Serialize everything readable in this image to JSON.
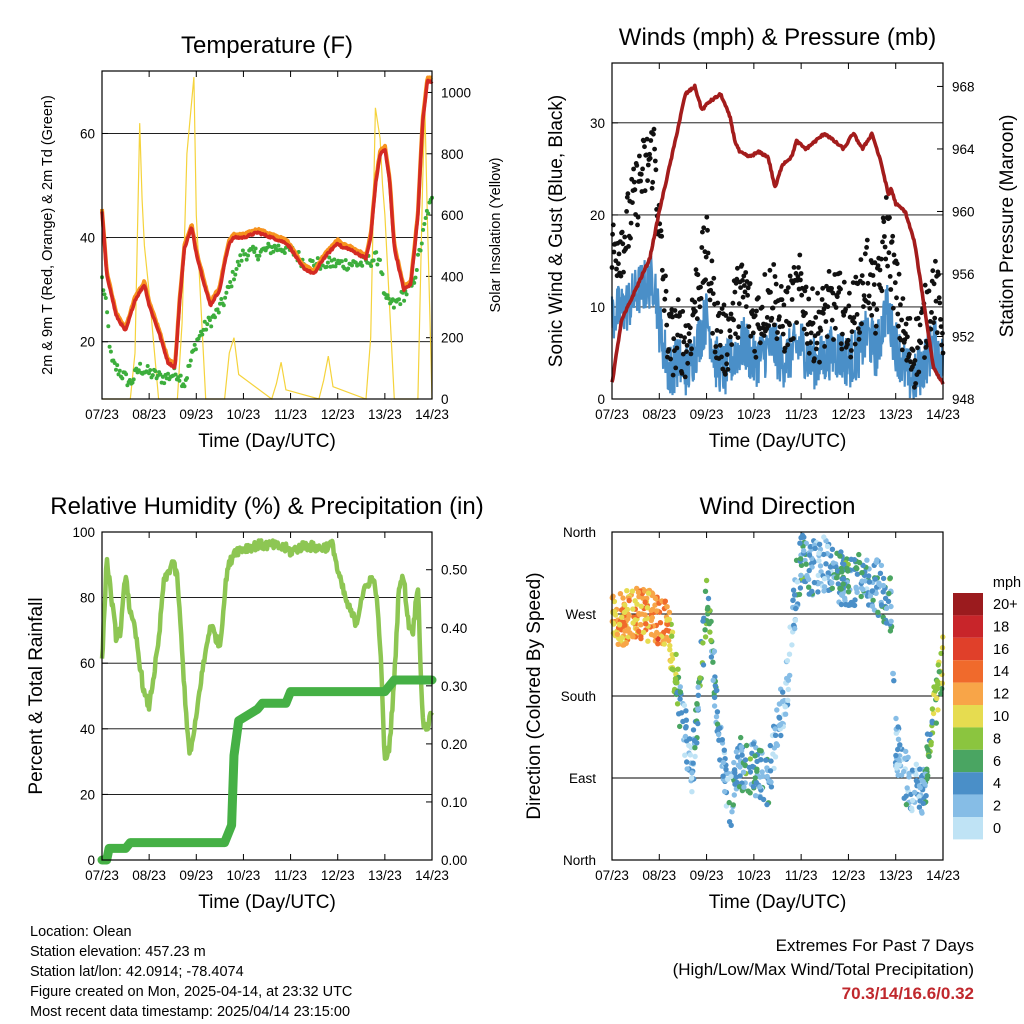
{
  "x_ticks": [
    "07/23",
    "08/23",
    "09/23",
    "10/23",
    "11/23",
    "12/23",
    "13/23",
    "14/23"
  ],
  "x_title": "Time (Day/UTC)",
  "panels": {
    "temperature": {
      "title": "Temperature (F)",
      "ylabel_left": "2m & 9m T (Red, Orange) & 2m Td (Green)",
      "ylabel_right": "Solar Insolation (Yellow)",
      "left_ticks": [
        "20",
        "40",
        "60"
      ],
      "right_ticks": [
        "0",
        "200",
        "400",
        "600",
        "800",
        "1000"
      ]
    },
    "winds": {
      "title": "Winds (mph) & Pressure (mb)",
      "ylabel_left": "Sonic Wind & Gust (Blue, Black)",
      "ylabel_right": "Station Pressure (Maroon)",
      "left_ticks": [
        "0",
        "10",
        "20",
        "30"
      ],
      "right_ticks": [
        "948",
        "952",
        "956",
        "960",
        "964",
        "968"
      ]
    },
    "humidity": {
      "title": "Relative Humidity (%) & Precipitation (in)",
      "ylabel_left": "Percent & Total Rainfall",
      "left_ticks": [
        "0",
        "20",
        "40",
        "60",
        "80",
        "100"
      ],
      "right_ticks": [
        "0.00",
        "0.10",
        "0.20",
        "0.30",
        "0.40",
        "0.50"
      ]
    },
    "direction": {
      "title": "Wind Direction",
      "ylabel_left": "Direction (Colored By Speed)",
      "left_ticks": [
        "North",
        "East",
        "South",
        "West",
        "North"
      ],
      "legend_title": "mph",
      "legend_labels": [
        "20+",
        "18",
        "16",
        "14",
        "12",
        "10",
        "8",
        "6",
        "4",
        "2",
        "0"
      ],
      "legend_colors": [
        "#9b1b1e",
        "#c8252a",
        "#e0402a",
        "#f06a2c",
        "#f8a548",
        "#e6dc50",
        "#8bc53f",
        "#4aa562",
        "#4a8fc8",
        "#86bde6",
        "#bfe3f5"
      ]
    }
  },
  "footer": {
    "location": "Location: Olean",
    "elevation": "Station elevation: 457.23 m",
    "latlon": "Station lat/lon: 42.0914; -78.4074",
    "created": "Figure created on Mon, 2025-04-14, at 23:32 UTC",
    "recent": "Most recent data timestamp: 2025/04/14 23:15:00"
  },
  "extremes": {
    "title": "Extremes For Past 7 Days",
    "subtitle": "(High/Low/Max Wind/Total Precipitation)",
    "values": "70.3/14/16.6/0.32"
  },
  "chart_data": [
    {
      "type": "line",
      "title": "Temperature (F)",
      "xlabel": "Time (Day/UTC)",
      "ylabel": "2m & 9m T (Red, Orange) & 2m Td (Green)",
      "y2label": "Solar Insolation (Yellow)",
      "ylim": [
        9,
        72
      ],
      "y2lim": [
        0,
        1070
      ],
      "x_days": [
        7,
        14
      ],
      "colors": {
        "temp2m": "#d42a23",
        "temp9m": "#f7931e",
        "dewpoint": "#3cae3c",
        "solar": "#f5d33c"
      },
      "series": [
        {
          "name": "Temperature",
          "x": [
            7.0,
            7.1,
            7.3,
            7.5,
            7.7,
            7.9,
            8.0,
            8.2,
            8.4,
            8.55,
            8.65,
            8.75,
            8.9,
            9.0,
            9.2,
            9.3,
            9.5,
            9.6,
            9.7,
            9.8,
            10.0,
            10.3,
            10.6,
            10.9,
            11.0,
            11.2,
            11.3,
            11.5,
            11.7,
            11.9,
            12.0,
            12.1,
            12.2,
            12.4,
            12.6,
            12.7,
            12.8,
            12.9,
            13.0,
            13.1,
            13.2,
            13.4,
            13.55,
            13.7,
            13.8,
            13.9,
            14.0
          ],
          "y": [
            45,
            33,
            25,
            22,
            28,
            31,
            27,
            22,
            16,
            15,
            28,
            38,
            42,
            37,
            30,
            27,
            30,
            35,
            39,
            40,
            40,
            41,
            40,
            39,
            38,
            35,
            34,
            33,
            36,
            38,
            39,
            38,
            38,
            37,
            36,
            40,
            50,
            56,
            57,
            51,
            38,
            30,
            31,
            44,
            62,
            70,
            70
          ]
        },
        {
          "name": "Dewpoint",
          "x": [
            7.0,
            7.1,
            7.2,
            7.4,
            7.6,
            7.8,
            8.0,
            8.3,
            8.6,
            8.75,
            9.0,
            9.2,
            9.4,
            9.6,
            9.8,
            10.0,
            10.3,
            10.6,
            10.9,
            11.1,
            11.3,
            11.6,
            11.9,
            12.2,
            12.5,
            12.8,
            12.9,
            13.0,
            13.2,
            13.4,
            13.6,
            13.8,
            13.9,
            14.0
          ],
          "y": [
            32,
            26,
            16,
            14,
            12,
            15,
            14,
            13,
            14,
            12,
            20,
            23,
            25,
            28,
            33,
            37,
            37,
            38,
            38,
            37,
            35,
            35,
            35,
            35,
            35,
            36,
            36,
            28,
            27,
            29,
            31,
            40,
            45,
            47
          ]
        },
        {
          "name": "Solar",
          "x": [
            7.0,
            7.6,
            7.7,
            7.8,
            7.85,
            7.9,
            8.0,
            8.2,
            8.6,
            8.7,
            8.8,
            8.95,
            9.0,
            9.2,
            9.6,
            9.7,
            9.8,
            9.9,
            10.6,
            10.7,
            10.8,
            10.9,
            11.6,
            11.7,
            11.8,
            11.9,
            12.6,
            12.7,
            12.8,
            12.9,
            12.95,
            13.0,
            13.2,
            13.7,
            13.8,
            13.85,
            13.9,
            14.0
          ],
          "y": [
            0,
            0,
            150,
            900,
            650,
            500,
            350,
            0,
            0,
            250,
            800,
            1050,
            600,
            0,
            0,
            150,
            200,
            80,
            0,
            50,
            120,
            30,
            0,
            60,
            140,
            40,
            0,
            200,
            950,
            850,
            700,
            600,
            0,
            0,
            700,
            950,
            600,
            0
          ]
        }
      ]
    },
    {
      "type": "scatter",
      "title": "Winds (mph) & Pressure (mb)",
      "xlabel": "Time (Day/UTC)",
      "ylabel": "Sonic Wind & Gust (Blue, Black)",
      "y2label": "Station Pressure (Maroon)",
      "ylim": [
        0,
        36.5
      ],
      "y2lim": [
        948,
        969.5
      ],
      "x_days": [
        7,
        14
      ],
      "colors": {
        "wind": "#4a8fc8",
        "gust": "#111111",
        "pressure": "#a31c1c"
      },
      "series": [
        {
          "name": "Pressure",
          "x": [
            7.0,
            7.2,
            7.5,
            7.8,
            8.0,
            8.3,
            8.55,
            8.75,
            8.9,
            9.05,
            9.3,
            9.5,
            9.6,
            9.7,
            9.9,
            10.1,
            10.3,
            10.45,
            10.6,
            10.8,
            10.9,
            11.1,
            11.3,
            11.5,
            11.7,
            11.9,
            12.1,
            12.3,
            12.5,
            12.7,
            12.85,
            12.9,
            13.0,
            13.2,
            13.4,
            13.6,
            13.8,
            14.0
          ],
          "y": [
            949,
            953,
            955,
            957,
            960,
            964,
            967.5,
            968,
            966.5,
            967,
            967.5,
            966,
            964.5,
            963.8,
            963.5,
            963.8,
            963.5,
            961.5,
            963,
            963.5,
            964.5,
            964,
            964.5,
            965,
            964.5,
            964,
            965,
            964,
            965,
            963,
            961,
            961.5,
            960.5,
            960,
            958,
            954,
            950,
            949
          ]
        },
        {
          "name": "Wind",
          "x": [
            7.0,
            7.3,
            7.6,
            7.9,
            8.0,
            8.2,
            8.4,
            8.6,
            8.8,
            9.0,
            9.2,
            9.4,
            9.6,
            9.8,
            10.0,
            10.2,
            10.4,
            10.6,
            10.8,
            11.0,
            11.2,
            11.4,
            11.6,
            11.8,
            12.0,
            12.2,
            12.4,
            12.6,
            12.8,
            13.0,
            13.2,
            13.4,
            13.6,
            13.8,
            14.0
          ],
          "y": [
            9,
            10,
            12,
            13,
            8,
            3,
            4,
            3,
            6,
            9,
            4,
            3,
            5,
            6,
            4,
            5,
            6,
            4,
            5,
            6,
            4,
            4,
            5,
            5,
            4,
            5,
            7,
            5,
            10,
            6,
            3,
            2,
            4,
            6,
            4
          ]
        },
        {
          "name": "Gust",
          "x": [
            7.0,
            7.3,
            7.6,
            7.9,
            8.0,
            8.2,
            8.4,
            8.6,
            8.8,
            9.0,
            9.2,
            9.4,
            9.6,
            9.8,
            10.0,
            10.2,
            10.4,
            10.6,
            10.8,
            11.0,
            11.2,
            11.4,
            11.6,
            11.8,
            12.0,
            12.2,
            12.4,
            12.6,
            12.8,
            13.0,
            13.2,
            13.4,
            13.6,
            13.8,
            14.0
          ],
          "y": [
            16,
            18,
            24,
            27,
            18,
            6,
            7,
            6,
            12,
            16,
            8,
            6,
            10,
            12,
            8,
            10,
            12,
            8,
            10,
            12,
            8,
            8,
            10,
            10,
            8,
            10,
            14,
            10,
            19,
            12,
            6,
            5,
            8,
            12,
            8
          ]
        }
      ]
    },
    {
      "type": "line",
      "title": "Relative Humidity (%) & Precipitation (in)",
      "xlabel": "Time (Day/UTC)",
      "ylabel": "Percent & Total Rainfall",
      "ylim": [
        0,
        100
      ],
      "y2lim": [
        0,
        0.565
      ],
      "x_days": [
        7,
        14
      ],
      "colors": {
        "rh": "#8dc653",
        "precip": "#45b045"
      },
      "series": [
        {
          "name": "Relative Humidity",
          "x": [
            7.0,
            7.1,
            7.2,
            7.3,
            7.4,
            7.5,
            7.6,
            7.7,
            7.9,
            8.0,
            8.2,
            8.3,
            8.5,
            8.6,
            8.75,
            8.85,
            8.95,
            9.1,
            9.3,
            9.5,
            9.65,
            9.8,
            10.0,
            10.3,
            10.6,
            10.9,
            11.0,
            11.3,
            11.6,
            11.9,
            12.0,
            12.2,
            12.4,
            12.5,
            12.7,
            12.8,
            12.9,
            13.0,
            13.1,
            13.2,
            13.3,
            13.4,
            13.5,
            13.6,
            13.7,
            13.8,
            13.9,
            14.0
          ],
          "y": [
            60,
            92,
            80,
            68,
            70,
            88,
            75,
            70,
            50,
            47,
            66,
            84,
            91,
            86,
            52,
            32,
            38,
            55,
            72,
            65,
            88,
            94,
            95,
            96,
            96,
            95,
            94,
            96,
            95,
            96,
            88,
            78,
            72,
            80,
            86,
            84,
            66,
            30,
            35,
            55,
            84,
            86,
            72,
            70,
            85,
            42,
            40,
            46
          ]
        },
        {
          "name": "Total Precipitation",
          "x": [
            7.0,
            7.1,
            7.15,
            7.5,
            7.6,
            9.6,
            9.75,
            9.8,
            9.9,
            10.1,
            10.3,
            10.4,
            10.9,
            11.0,
            12.5,
            13.0,
            13.2,
            13.5,
            14.0
          ],
          "y": [
            0.0,
            0.0,
            0.02,
            0.02,
            0.03,
            0.03,
            0.06,
            0.18,
            0.24,
            0.25,
            0.26,
            0.27,
            0.27,
            0.29,
            0.29,
            0.29,
            0.31,
            0.31,
            0.31
          ]
        }
      ]
    },
    {
      "type": "scatter",
      "title": "Wind Direction",
      "xlabel": "Time (Day/UTC)",
      "ylabel": "Direction (Colored By Speed)",
      "ylim": [
        0,
        360
      ],
      "x_days": [
        7,
        14
      ],
      "series": [
        {
          "name": "Direction",
          "x": [
            7.0,
            7.5,
            8.0,
            8.2,
            8.5,
            8.7,
            9.0,
            9.1,
            9.3,
            9.5,
            9.7,
            9.9,
            10.0,
            10.3,
            10.5,
            10.7,
            10.9,
            11.0,
            11.2,
            11.5,
            11.8,
            12.0,
            12.3,
            12.6,
            12.9,
            13.0,
            13.2,
            13.4,
            13.6,
            13.8,
            14.0
          ],
          "y": [
            262,
            270,
            265,
            250,
            150,
            100,
            280,
            240,
            120,
            60,
            110,
            95,
            100,
            85,
            150,
            190,
            300,
            330,
            320,
            325,
            310,
            305,
            315,
            300,
            280,
            130,
            90,
            80,
            80,
            160,
            220
          ],
          "speed": [
            12,
            13,
            14,
            12,
            4,
            3,
            8,
            6,
            3,
            4,
            5,
            6,
            5,
            4,
            3,
            2,
            4,
            6,
            4,
            3,
            5,
            6,
            4,
            5,
            6,
            3,
            4,
            2,
            5,
            8,
            9
          ]
        }
      ]
    }
  ]
}
